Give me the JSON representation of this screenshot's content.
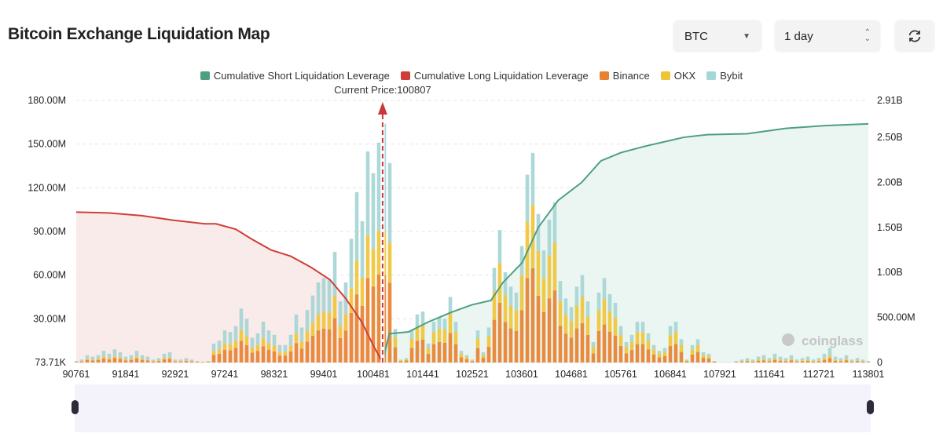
{
  "title": "Bitcoin Exchange Liquidation Map",
  "controls": {
    "coin": "BTC",
    "range": "1 day",
    "refresh_icon": "refresh-icon"
  },
  "colors": {
    "binance": "#e8812f",
    "okx": "#f0c437",
    "bybit": "#a6d5d5",
    "short": "#4e9f80",
    "long": "#cf3f37"
  },
  "legend": [
    {
      "label": "Cumulative Short Liquidation Leverage",
      "color": "#4e9f80"
    },
    {
      "label": "Cumulative Long Liquidation Leverage",
      "color": "#cf3f37"
    },
    {
      "label": "Binance",
      "color": "#e8812f"
    },
    {
      "label": "OKX",
      "color": "#f0c437"
    },
    {
      "label": "Bybit",
      "color": "#a6d5d5"
    }
  ],
  "watermark": "coinglass",
  "chart_data": {
    "type": "bar",
    "current_price_label": "Current Price:100807",
    "current_price": 100807,
    "y_left": {
      "ticks": [
        "73.71K",
        "30.00M",
        "60.00M",
        "90.00M",
        "120.00M",
        "150.00M",
        "180.00M"
      ],
      "range_millions": [
        0,
        180
      ]
    },
    "y_right": {
      "ticks": [
        "0",
        "500.00M",
        "1.00B",
        "1.50B",
        "2.00B",
        "2.50B",
        "2.91B"
      ],
      "range_billions": [
        0,
        2.91
      ]
    },
    "x_ticks": [
      "90761",
      "91841",
      "92921",
      "97241",
      "98321",
      "99401",
      "100481",
      "101441",
      "102521",
      "103601",
      "104681",
      "105761",
      "106841",
      "107921",
      "111641",
      "112721",
      "113801"
    ],
    "x_tick_every": 9,
    "grid": true,
    "legend_position": "top",
    "series": [
      {
        "name": "Binance",
        "values": [
          0.4,
          0.7,
          1.8,
          1.4,
          1.8,
          2.8,
          2.1,
          3.2,
          2.5,
          1.4,
          1.8,
          2.8,
          1.8,
          1.4,
          0.7,
          1,
          2.1,
          2.5,
          0.7,
          0.7,
          1,
          0.7,
          0.4,
          0.2,
          0.4,
          5.2,
          6,
          8.8,
          8.4,
          10,
          14.8,
          12,
          6.8,
          8,
          11.2,
          8.8,
          7.6,
          4.8,
          4.8,
          7.6,
          13.2,
          9.6,
          14.4,
          18.4,
          22,
          23.2,
          22.8,
          30.4,
          16.8,
          22,
          34,
          46.8,
          38.8,
          58,
          52,
          60.4,
          60,
          54.8,
          10.4,
          0.9,
          1.4,
          9.9,
          14.9,
          15.8,
          5.9,
          12.6,
          14,
          13.5,
          20.3,
          12.6,
          3.6,
          2.3,
          0.9,
          9.9,
          3.2,
          10.8,
          29.3,
          41,
          27.9,
          23.4,
          21.6,
          36,
          58,
          64.8,
          45.9,
          34.7,
          44.1,
          49.5,
          25.2,
          19.8,
          17.1,
          23.4,
          27,
          18.9,
          6.3,
          21.6,
          26.1,
          21.2,
          18.5,
          11.3,
          6.3,
          8.6,
          12.6,
          12.6,
          9,
          5.4,
          3.6,
          4.5,
          11.3,
          12.6,
          7.2,
          0.9,
          5.4,
          7.2,
          3.2,
          2.7,
          0.5,
          0,
          0,
          0,
          0.3,
          0.6,
          0.9,
          0.6,
          1.2,
          1.5,
          0.9,
          1.8,
          1.2,
          0.9,
          1.5,
          0.6,
          0.9,
          1.2,
          0.6,
          0.9,
          1.8,
          3,
          1.2,
          0.9,
          1.5,
          0.6,
          0.9,
          0.6,
          0.3
        ]
      },
      {
        "name": "OKX",
        "values": [
          0.1,
          0.3,
          0.7,
          0.6,
          0.7,
          1.2,
          0.9,
          1.3,
          1,
          0.6,
          0.7,
          1.2,
          0.7,
          0.6,
          0.3,
          0.5,
          0.9,
          1,
          0.3,
          0.3,
          0.5,
          0.3,
          0.1,
          0.1,
          0.1,
          2.6,
          3,
          4.4,
          4.2,
          5,
          7.4,
          6,
          3.4,
          4,
          5.6,
          4.4,
          3.8,
          2.4,
          2.4,
          3.8,
          6.6,
          4.8,
          7.2,
          9.2,
          11,
          11.6,
          11.4,
          15.2,
          8.4,
          11,
          17,
          23.4,
          19.4,
          29,
          26,
          30.2,
          30,
          27.4,
          6.9,
          0.6,
          0.9,
          6.6,
          9.9,
          10.5,
          3.9,
          8.4,
          9.3,
          9,
          13.5,
          8.4,
          2.4,
          1.5,
          0.6,
          6.6,
          2.1,
          7.2,
          19.5,
          27.3,
          18.6,
          15.6,
          14.4,
          24,
          38.7,
          43.2,
          30.6,
          23.1,
          29.4,
          33,
          16.8,
          13.2,
          11.4,
          15.6,
          18,
          12.6,
          4.2,
          14.4,
          17.4,
          14.1,
          12.3,
          7.5,
          4.2,
          5.7,
          8.4,
          8.4,
          6,
          3.6,
          2.4,
          3,
          7.5,
          8.4,
          4.8,
          0.6,
          3.6,
          4.8,
          2.1,
          1.8,
          0.3,
          0,
          0,
          0,
          0.2,
          0.4,
          0.6,
          0.4,
          0.8,
          1,
          0.6,
          1.2,
          0.8,
          0.6,
          1,
          0.4,
          0.6,
          0.8,
          0.4,
          0.6,
          1.2,
          2,
          0.8,
          0.6,
          1,
          0.4,
          0.6,
          0.4,
          0.2
        ]
      },
      {
        "name": "Bybit",
        "values": [
          0.5,
          1,
          2.5,
          2,
          2.5,
          4,
          3,
          4.5,
          3.5,
          2,
          2.5,
          4,
          2.5,
          2,
          1,
          1.5,
          3,
          3.5,
          1,
          1,
          1.5,
          1,
          0.5,
          0.2,
          0.5,
          5.2,
          6,
          8.8,
          8.4,
          10,
          14.8,
          12,
          6.8,
          8,
          11.2,
          8.8,
          7.6,
          4.8,
          4.8,
          7.6,
          13.2,
          9.6,
          14.4,
          18.4,
          22,
          23.2,
          22.8,
          30.4,
          16.8,
          22,
          34,
          46.8,
          38.8,
          58,
          52,
          60.4,
          74,
          54.8,
          5.7,
          0.5,
          0.7,
          5.5,
          8.2,
          8.7,
          3.2,
          7,
          7.7,
          7.5,
          11.2,
          7,
          2,
          1.2,
          0.5,
          5.5,
          1.7,
          6,
          16.2,
          22.7,
          15.5,
          13,
          12,
          20,
          32.3,
          36,
          25.5,
          19.2,
          24.5,
          27.5,
          14,
          11,
          9.5,
          13,
          15,
          10.5,
          3.5,
          12,
          14.5,
          11.7,
          10.2,
          6.2,
          3.5,
          4.7,
          7,
          7,
          5,
          3,
          2,
          2.5,
          6.2,
          7,
          4,
          0.5,
          3,
          4,
          1.7,
          1.5,
          0.2,
          0,
          0,
          0,
          0.5,
          1,
          1.5,
          1,
          2,
          2.5,
          1.5,
          3,
          2,
          1.5,
          2.5,
          1,
          1.5,
          2,
          1,
          1.5,
          3,
          5,
          2,
          1.5,
          2.5,
          1,
          1.5,
          1,
          0.5
        ]
      }
    ],
    "cumulative_long_billions": [
      [
        0,
        1.67
      ],
      [
        6.1,
        1.66
      ],
      [
        11.9,
        1.63
      ],
      [
        17.6,
        1.58
      ],
      [
        23.3,
        1.54
      ],
      [
        25.4,
        1.54
      ],
      [
        29,
        1.48
      ],
      [
        31.9,
        1.37
      ],
      [
        35.4,
        1.25
      ],
      [
        39,
        1.18
      ],
      [
        42.6,
        1.06
      ],
      [
        46.1,
        0.92
      ],
      [
        49,
        0.71
      ],
      [
        51.9,
        0.45
      ],
      [
        54,
        0.19
      ],
      [
        55.7,
        0
      ]
    ],
    "cumulative_short_billions": [
      [
        55.7,
        0
      ],
      [
        56.9,
        0.32
      ],
      [
        60.4,
        0.34
      ],
      [
        64,
        0.45
      ],
      [
        68.3,
        0.56
      ],
      [
        71.9,
        0.64
      ],
      [
        75.4,
        0.69
      ],
      [
        77.6,
        0.89
      ],
      [
        81.1,
        1.11
      ],
      [
        84,
        1.5
      ],
      [
        87.6,
        1.8
      ],
      [
        91.9,
        2.0
      ],
      [
        95.4,
        2.24
      ],
      [
        99,
        2.33
      ],
      [
        103.3,
        2.4
      ],
      [
        107.6,
        2.46
      ],
      [
        110.4,
        2.5
      ],
      [
        114.7,
        2.53
      ],
      [
        121.9,
        2.54
      ],
      [
        129,
        2.6
      ],
      [
        136.1,
        2.63
      ],
      [
        144,
        2.65
      ]
    ]
  }
}
